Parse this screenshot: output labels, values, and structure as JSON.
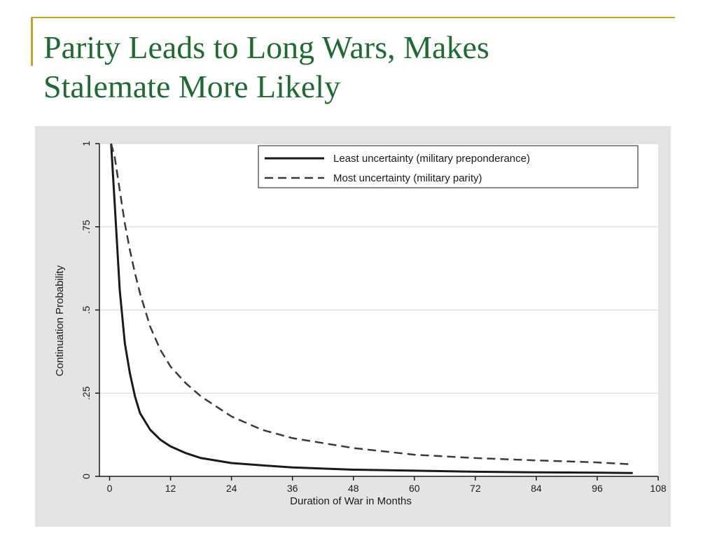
{
  "slide": {
    "title_line1": "Parity Leads to Long Wars, Makes",
    "title_line2": "Stalemate More Likely",
    "accent_color": "#c9a227",
    "title_color": "#1f6b32"
  },
  "chart_data": {
    "type": "line",
    "xlabel": "Duration of War in Months",
    "ylabel": "Continuation Probability",
    "xlim": [
      -2,
      108
    ],
    "ylim": [
      0,
      1
    ],
    "x_ticks": [
      0,
      12,
      24,
      36,
      48,
      60,
      72,
      84,
      96,
      108
    ],
    "x_tick_labels": [
      "0",
      "12",
      "24",
      "36",
      "48",
      "60",
      "72",
      "84",
      "96",
      "108"
    ],
    "y_ticks": [
      0,
      0.25,
      0.5,
      0.75,
      1
    ],
    "y_tick_labels": [
      "0",
      ".25",
      ".5",
      ".75",
      "1"
    ],
    "grid": "horizontal",
    "legend": "top-right",
    "plot_background": "#ffffff",
    "frame_background": "#e4e4e4",
    "series": [
      {
        "name": "Least uncertainty (military preponderance)",
        "style": "solid",
        "color": "#1a1a1a",
        "x": [
          0.3,
          1,
          2,
          3,
          4,
          5,
          6,
          8,
          10,
          12,
          15,
          18,
          24,
          30,
          36,
          48,
          60,
          72,
          84,
          96,
          103
        ],
        "y": [
          1.0,
          0.82,
          0.56,
          0.4,
          0.31,
          0.24,
          0.19,
          0.14,
          0.11,
          0.09,
          0.07,
          0.055,
          0.04,
          0.033,
          0.027,
          0.02,
          0.017,
          0.014,
          0.012,
          0.011,
          0.01
        ]
      },
      {
        "name": "Most uncertainty (military parity)",
        "style": "dashed",
        "color": "#3a3a3a",
        "x": [
          0.3,
          1,
          2,
          3,
          4,
          5,
          6,
          8,
          10,
          12,
          15,
          18,
          24,
          30,
          36,
          48,
          60,
          72,
          84,
          96,
          103
        ],
        "y": [
          1.0,
          0.96,
          0.86,
          0.76,
          0.68,
          0.61,
          0.55,
          0.45,
          0.38,
          0.33,
          0.28,
          0.24,
          0.18,
          0.14,
          0.115,
          0.085,
          0.065,
          0.055,
          0.048,
          0.042,
          0.036
        ]
      }
    ]
  }
}
